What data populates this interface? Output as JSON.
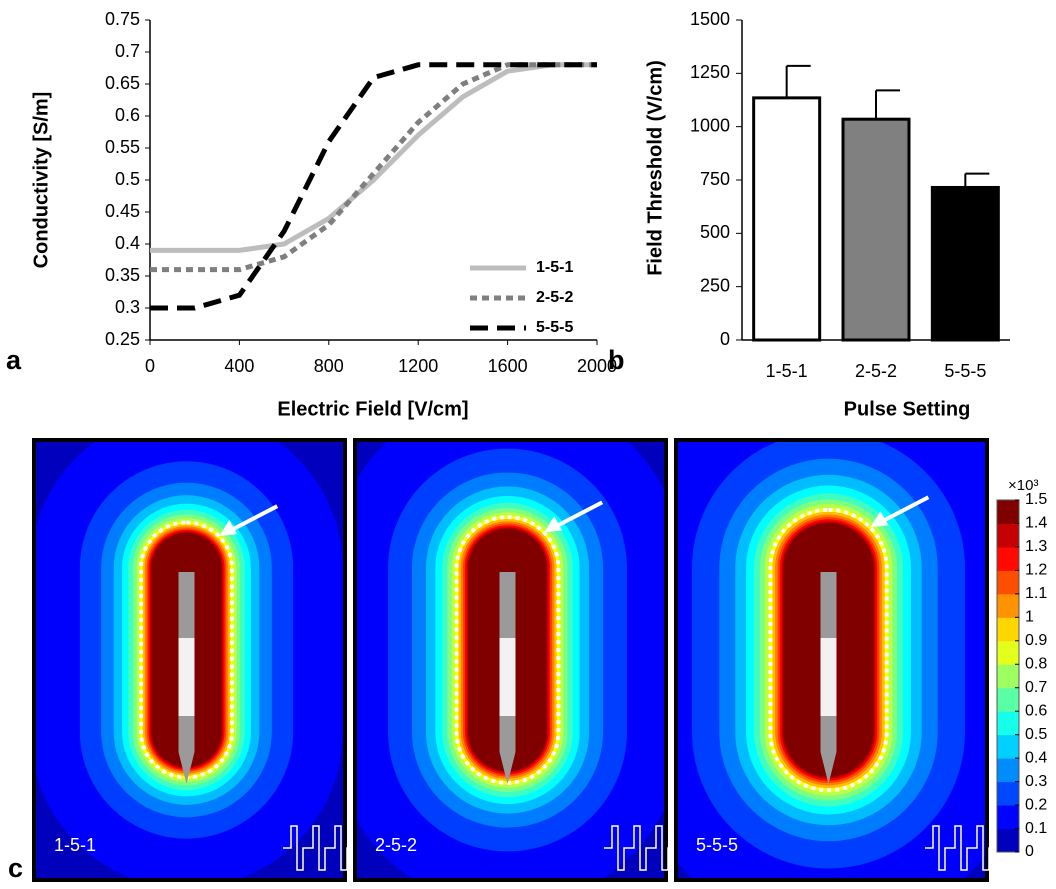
{
  "chart_data": [
    {
      "type": "line",
      "panel_label": "a",
      "x_label": "Electric Field [V/cm]",
      "y_label": "Conductivity [S/m]",
      "x": [
        0,
        200,
        400,
        600,
        800,
        1000,
        1200,
        1400,
        1600,
        1800,
        2000
      ],
      "series": [
        {
          "name": "1-5-1",
          "color": "#bdbdbd",
          "dash": "solid",
          "values": [
            0.39,
            0.39,
            0.39,
            0.4,
            0.44,
            0.5,
            0.57,
            0.63,
            0.67,
            0.68,
            0.68
          ]
        },
        {
          "name": "2-5-2",
          "color": "#7f7f7f",
          "dash": "dotted",
          "values": [
            0.36,
            0.36,
            0.36,
            0.38,
            0.43,
            0.51,
            0.59,
            0.65,
            0.68,
            0.68,
            0.68
          ]
        },
        {
          "name": "5-5-5",
          "color": "#000000",
          "dash": "dashed",
          "values": [
            0.3,
            0.3,
            0.32,
            0.42,
            0.56,
            0.66,
            0.68,
            0.68,
            0.68,
            0.68,
            0.68
          ]
        }
      ],
      "xlim": [
        0,
        2000
      ],
      "xticks": [
        0,
        400,
        800,
        1200,
        1600,
        2000
      ],
      "ylim": [
        0.25,
        0.75
      ],
      "yticks": [
        0.25,
        0.3,
        0.35,
        0.4,
        0.45,
        0.5,
        0.55,
        0.6,
        0.65,
        0.7,
        0.75
      ],
      "legend": "lower right"
    },
    {
      "type": "bar",
      "panel_label": "b",
      "x_label": "Pulse Setting",
      "y_label": "Field Threshold (V/cm)",
      "categories": [
        "1-5-1",
        "2-5-2",
        "5-5-5"
      ],
      "values": [
        1135,
        1035,
        715
      ],
      "errors": [
        150,
        135,
        65
      ],
      "colors": [
        "#ffffff",
        "#808080",
        "#000000"
      ],
      "ylim": [
        0,
        1500
      ],
      "yticks": [
        0,
        250,
        500,
        750,
        1000,
        1250,
        1500
      ]
    },
    {
      "type": "heatmap",
      "panel_label": "c",
      "panels": [
        "1-5-1",
        "2-5-2",
        "5-5-5"
      ],
      "colormap": "jet",
      "colorbar_label": "×10³",
      "clim": [
        0,
        1.5
      ],
      "cticks": [
        0,
        0.1,
        0.2,
        0.3,
        0.4,
        0.5,
        0.6,
        0.7,
        0.8,
        0.9,
        1,
        1.1,
        1.2,
        1.3,
        1.4,
        1.5
      ]
    }
  ]
}
